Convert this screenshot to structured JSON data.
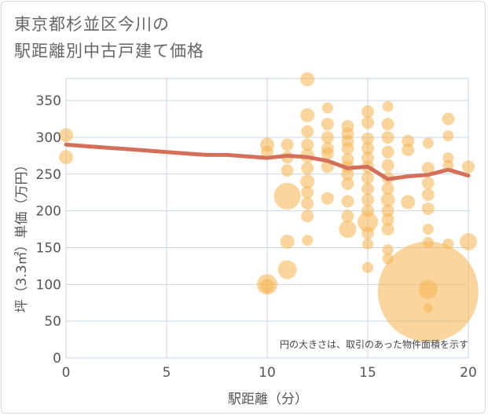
{
  "title_lines": [
    "東京都杉並区今川の",
    "駅距離別中古戸建て価格"
  ],
  "colors": {
    "bubble": "#f5b54f",
    "line": "#d4705a",
    "grid": "#c9d6e3",
    "plot_bg": "#ffffff"
  },
  "chart_data": {
    "type": "scatter",
    "title": "東京都杉並区今川の駅距離別中古戸建て価格",
    "xlabel": "駅距離（分）",
    "ylabel": "坪（3.3㎡）単価（万円）",
    "xlim": [
      0,
      20
    ],
    "ylim": [
      0,
      380
    ],
    "x_ticks": [
      0,
      5,
      10,
      15,
      20
    ],
    "y_ticks": [
      0,
      50,
      100,
      150,
      200,
      250,
      300,
      350
    ],
    "grid": true,
    "note": "円の大きさは、取引のあった物件面積を示す",
    "bubbles": [
      {
        "x": 0,
        "y": 303,
        "r": 9
      },
      {
        "x": 0,
        "y": 273,
        "r": 9
      },
      {
        "x": 10,
        "y": 290,
        "r": 9
      },
      {
        "x": 10,
        "y": 280,
        "r": 8
      },
      {
        "x": 10,
        "y": 100,
        "r": 13
      },
      {
        "x": 10,
        "y": 98,
        "r": 9
      },
      {
        "x": 11,
        "y": 290,
        "r": 8
      },
      {
        "x": 11,
        "y": 273,
        "r": 8
      },
      {
        "x": 11,
        "y": 255,
        "r": 8
      },
      {
        "x": 11,
        "y": 220,
        "r": 17
      },
      {
        "x": 11,
        "y": 158,
        "r": 9
      },
      {
        "x": 11,
        "y": 120,
        "r": 12
      },
      {
        "x": 12,
        "y": 379,
        "r": 9
      },
      {
        "x": 12,
        "y": 330,
        "r": 9
      },
      {
        "x": 12,
        "y": 308,
        "r": 8
      },
      {
        "x": 12,
        "y": 290,
        "r": 8
      },
      {
        "x": 12,
        "y": 275,
        "r": 9
      },
      {
        "x": 12,
        "y": 258,
        "r": 8
      },
      {
        "x": 12,
        "y": 240,
        "r": 9
      },
      {
        "x": 12,
        "y": 225,
        "r": 8
      },
      {
        "x": 12,
        "y": 210,
        "r": 8
      },
      {
        "x": 12,
        "y": 193,
        "r": 8
      },
      {
        "x": 12,
        "y": 160,
        "r": 7
      },
      {
        "x": 13,
        "y": 340,
        "r": 7
      },
      {
        "x": 13,
        "y": 318,
        "r": 8
      },
      {
        "x": 13,
        "y": 300,
        "r": 8
      },
      {
        "x": 13,
        "y": 285,
        "r": 8
      },
      {
        "x": 13,
        "y": 278,
        "r": 8
      },
      {
        "x": 13,
        "y": 260,
        "r": 8
      },
      {
        "x": 13,
        "y": 217,
        "r": 8
      },
      {
        "x": 14,
        "y": 315,
        "r": 8
      },
      {
        "x": 14,
        "y": 305,
        "r": 8
      },
      {
        "x": 14,
        "y": 295,
        "r": 8
      },
      {
        "x": 14,
        "y": 285,
        "r": 8
      },
      {
        "x": 14,
        "y": 270,
        "r": 8
      },
      {
        "x": 14,
        "y": 260,
        "r": 8
      },
      {
        "x": 14,
        "y": 250,
        "r": 8
      },
      {
        "x": 14,
        "y": 237,
        "r": 8
      },
      {
        "x": 14,
        "y": 213,
        "r": 8
      },
      {
        "x": 14,
        "y": 193,
        "r": 8
      },
      {
        "x": 14,
        "y": 175,
        "r": 11
      },
      {
        "x": 15,
        "y": 335,
        "r": 8
      },
      {
        "x": 15,
        "y": 320,
        "r": 8
      },
      {
        "x": 15,
        "y": 298,
        "r": 8
      },
      {
        "x": 15,
        "y": 285,
        "r": 8
      },
      {
        "x": 15,
        "y": 272,
        "r": 8
      },
      {
        "x": 15,
        "y": 260,
        "r": 8
      },
      {
        "x": 15,
        "y": 245,
        "r": 8
      },
      {
        "x": 15,
        "y": 230,
        "r": 8
      },
      {
        "x": 15,
        "y": 215,
        "r": 8
      },
      {
        "x": 15,
        "y": 200,
        "r": 8
      },
      {
        "x": 15,
        "y": 185,
        "r": 13
      },
      {
        "x": 15,
        "y": 170,
        "r": 8
      },
      {
        "x": 15,
        "y": 155,
        "r": 7
      },
      {
        "x": 15,
        "y": 123,
        "r": 7
      },
      {
        "x": 16,
        "y": 342,
        "r": 7
      },
      {
        "x": 16,
        "y": 318,
        "r": 8
      },
      {
        "x": 16,
        "y": 300,
        "r": 8
      },
      {
        "x": 16,
        "y": 280,
        "r": 8
      },
      {
        "x": 16,
        "y": 262,
        "r": 8
      },
      {
        "x": 16,
        "y": 245,
        "r": 8
      },
      {
        "x": 16,
        "y": 230,
        "r": 8
      },
      {
        "x": 16,
        "y": 215,
        "r": 9
      },
      {
        "x": 16,
        "y": 200,
        "r": 8
      },
      {
        "x": 16,
        "y": 188,
        "r": 8
      },
      {
        "x": 16,
        "y": 175,
        "r": 8
      },
      {
        "x": 16,
        "y": 147,
        "r": 7
      },
      {
        "x": 16,
        "y": 135,
        "r": 7
      },
      {
        "x": 17,
        "y": 295,
        "r": 8
      },
      {
        "x": 17,
        "y": 283,
        "r": 8
      },
      {
        "x": 17,
        "y": 212,
        "r": 9
      },
      {
        "x": 18,
        "y": 292,
        "r": 7
      },
      {
        "x": 18,
        "y": 258,
        "r": 8
      },
      {
        "x": 18,
        "y": 238,
        "r": 8
      },
      {
        "x": 18,
        "y": 222,
        "r": 8
      },
      {
        "x": 18,
        "y": 203,
        "r": 8
      },
      {
        "x": 18,
        "y": 175,
        "r": 7
      },
      {
        "x": 18,
        "y": 157,
        "r": 7
      },
      {
        "x": 18,
        "y": 90,
        "r": 64
      },
      {
        "x": 18,
        "y": 93,
        "r": 12
      },
      {
        "x": 18,
        "y": 68,
        "r": 6
      },
      {
        "x": 19,
        "y": 325,
        "r": 8
      },
      {
        "x": 19,
        "y": 302,
        "r": 7
      },
      {
        "x": 19,
        "y": 272,
        "r": 7
      },
      {
        "x": 19,
        "y": 262,
        "r": 7
      },
      {
        "x": 19,
        "y": 155,
        "r": 7
      },
      {
        "x": 20,
        "y": 260,
        "r": 8
      },
      {
        "x": 20,
        "y": 158,
        "r": 11
      }
    ],
    "trend": {
      "x": [
        0,
        1,
        2,
        3,
        4,
        5,
        6,
        7,
        8,
        9,
        10,
        11,
        12,
        13,
        14,
        15,
        16,
        17,
        18,
        19,
        20
      ],
      "y": [
        290,
        288,
        286,
        284,
        282,
        280,
        278,
        276,
        276,
        274,
        272,
        275,
        273,
        268,
        258,
        260,
        243,
        247,
        249,
        256,
        248
      ]
    }
  }
}
